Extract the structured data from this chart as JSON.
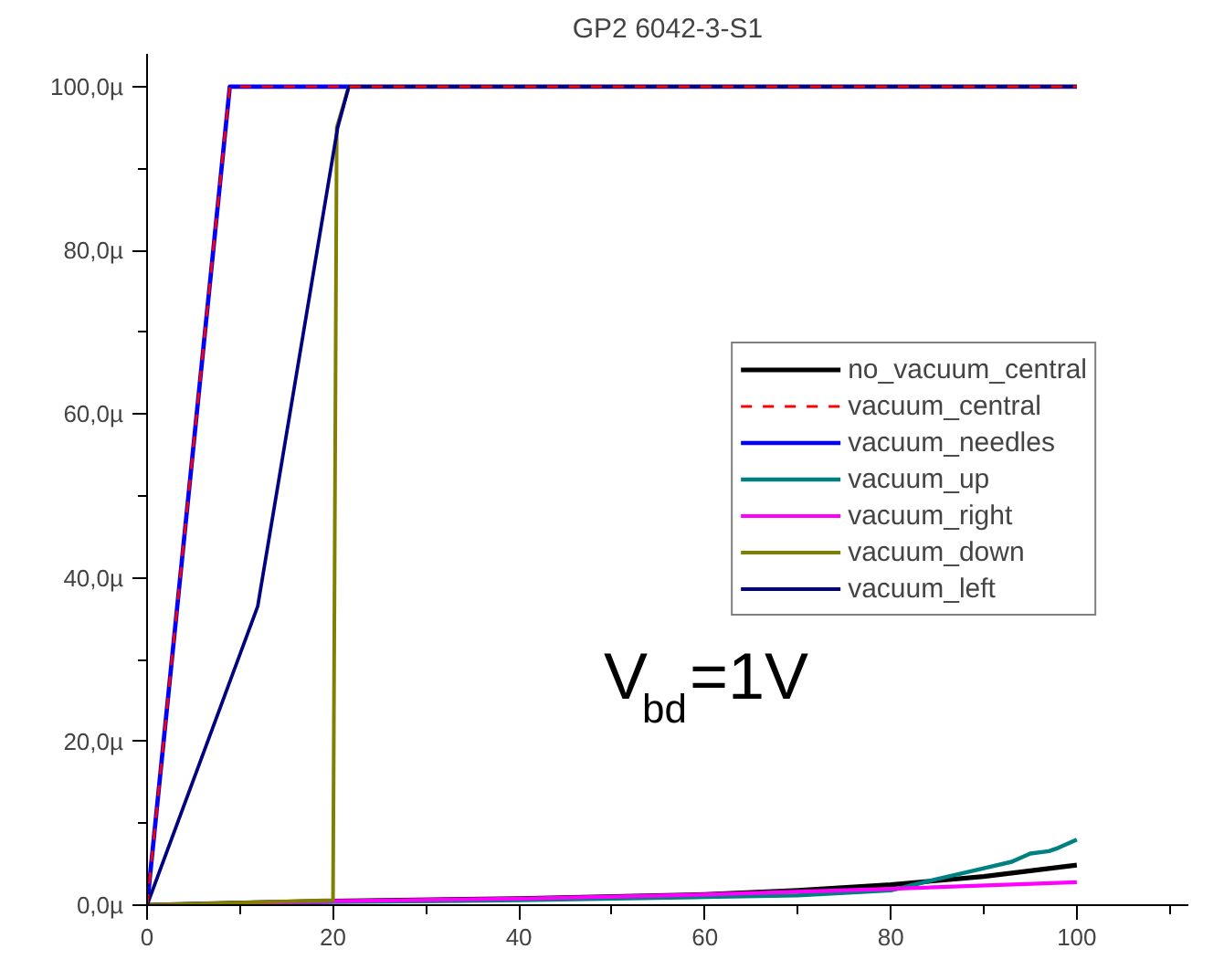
{
  "chart_data": {
    "type": "line",
    "title": "GP2 6042-3-S1",
    "xlim": [
      0,
      112
    ],
    "ylim": [
      0,
      104
    ],
    "xticks": [
      0,
      20,
      40,
      60,
      80,
      100,
      {
        "value": 10,
        "label": null
      },
      {
        "value": 30,
        "label": null
      },
      {
        "value": 50,
        "label": null
      },
      {
        "value": 70,
        "label": null
      },
      {
        "value": 90,
        "label": null
      },
      {
        "value": 110,
        "label": null
      }
    ],
    "yticks": [
      {
        "value": 0,
        "label": "0,0µ"
      },
      {
        "value": 20,
        "label": "20,0µ"
      },
      {
        "value": 40,
        "label": "40,0µ"
      },
      {
        "value": 60,
        "label": "60,0µ"
      },
      {
        "value": 80,
        "label": "80,0µ"
      },
      {
        "value": 100,
        "label": "100,0µ"
      },
      {
        "value": 10,
        "label": null
      },
      {
        "value": 30,
        "label": null
      },
      {
        "value": 50,
        "label": null
      },
      {
        "value": 70,
        "label": null
      },
      {
        "value": 90,
        "label": null
      }
    ],
    "grid": false,
    "legend": "right",
    "annotations": [
      "V$_{bd}$=1V"
    ],
    "series": [
      {
        "name": "no_vacuum_central",
        "color": "#000000",
        "x": [
          0,
          20,
          40,
          60,
          70,
          80,
          90,
          100
        ],
        "values": [
          0,
          0.5,
          0.8,
          1.3,
          1.8,
          2.5,
          3.5,
          4.9
        ]
      },
      {
        "name": "vacuum_central",
        "color": "#ff0000",
        "line_style": "dashed",
        "x": [
          0,
          8.9,
          100
        ],
        "values": [
          0,
          100,
          100
        ]
      },
      {
        "name": "vacuum_needles",
        "color": "#0000ff",
        "x": [
          0,
          8.9,
          100
        ],
        "values": [
          0,
          100,
          100
        ]
      },
      {
        "name": "vacuum_up",
        "color": "#008080",
        "x": [
          0,
          20,
          40,
          60,
          70,
          80,
          85,
          90,
          93,
          95,
          97,
          98,
          100
        ],
        "values": [
          0,
          0.4,
          0.6,
          1.0,
          1.2,
          1.8,
          3.2,
          4.5,
          5.3,
          6.3,
          6.6,
          7.0,
          8.0
        ]
      },
      {
        "name": "vacuum_right",
        "color": "#ff00ff",
        "x": [
          0,
          20,
          40,
          60,
          80,
          100
        ],
        "values": [
          0,
          0.5,
          0.8,
          1.3,
          2.0,
          2.8
        ]
      },
      {
        "name": "vacuum_down",
        "color": "#808000",
        "x": [
          0,
          20,
          20.4,
          21.7,
          100
        ],
        "values": [
          0,
          0.6,
          95,
          100,
          100
        ]
      },
      {
        "name": "vacuum_left",
        "color": "#000080",
        "x": [
          0,
          11.9,
          20.5,
          21.7,
          100
        ],
        "values": [
          0,
          36.5,
          95,
          100,
          100
        ]
      }
    ]
  }
}
